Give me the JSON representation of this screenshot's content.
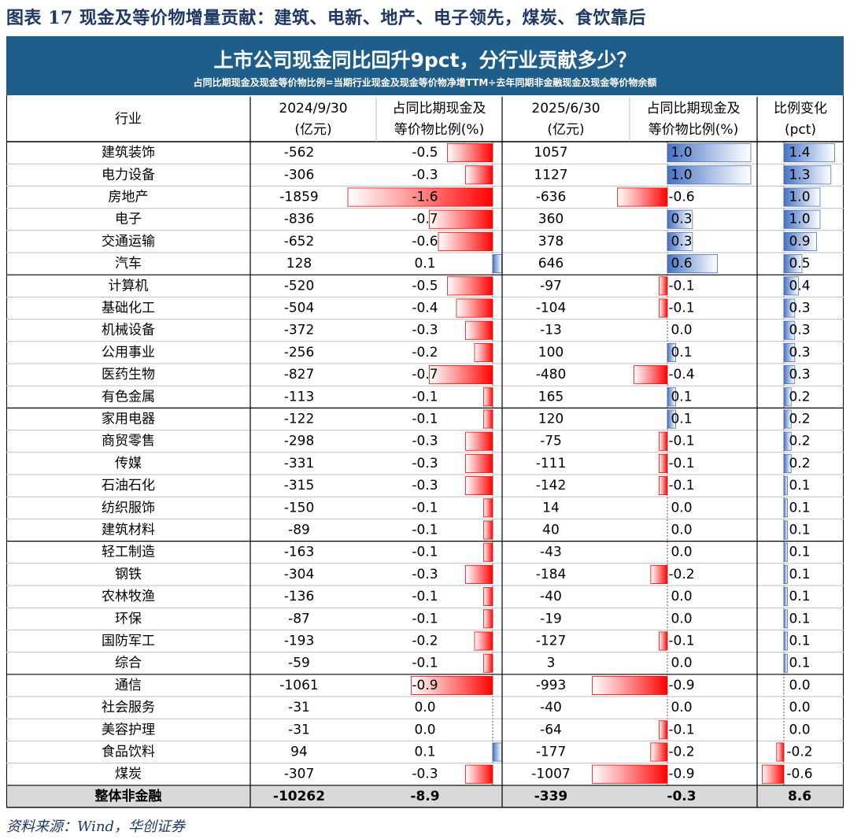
{
  "figure_title": "图表 17 现金及等价物增量贡献：建筑、电新、地产、电子领先，煤炭、食饮靠后",
  "banner": {
    "title": "上市公司现金同比回升9pct，分行业贡献多少？",
    "subtitle": "占同比期现金及现金等价物比例=当期行业现金及现金等价物净增TTM÷去年同期非金融现金及现金等价物余额"
  },
  "source": "资料来源：Wind，华创证券",
  "colors": {
    "banner": "#1f5e8a",
    "negative_bar": "#ff0000",
    "positive_bar": "#4472c4",
    "total_row": "#d9d9d9"
  },
  "chart_data": {
    "type": "table",
    "columns": [
      {
        "lines": [
          "行业"
        ]
      },
      {
        "lines": [
          "2024/9/30",
          "(亿元)"
        ]
      },
      {
        "lines": [
          "占同比期现金及",
          "等价物比例(%)"
        ]
      },
      {
        "lines": [
          "2025/6/30",
          "(亿元)"
        ]
      },
      {
        "lines": [
          "占同比期现金及",
          "等价物比例(%)"
        ]
      },
      {
        "lines": [
          "比例变化",
          "(pct)"
        ]
      }
    ],
    "rows": [
      {
        "industry": "建筑装饰",
        "v2024": "-562",
        "r2024": "-0.5",
        "v2025": "1057",
        "r2025": "1.0",
        "change": "1.4"
      },
      {
        "industry": "电力设备",
        "v2024": "-306",
        "r2024": "-0.3",
        "v2025": "1127",
        "r2025": "1.0",
        "change": "1.3"
      },
      {
        "industry": "房地产",
        "v2024": "-1859",
        "r2024": "-1.6",
        "v2025": "-636",
        "r2025": "-0.6",
        "change": "1.0"
      },
      {
        "industry": "电子",
        "v2024": "-836",
        "r2024": "-0.7",
        "v2025": "360",
        "r2025": "0.3",
        "change": "1.0"
      },
      {
        "industry": "交通运输",
        "v2024": "-652",
        "r2024": "-0.6",
        "v2025": "378",
        "r2025": "0.3",
        "change": "0.9"
      },
      {
        "industry": "汽车",
        "v2024": "128",
        "r2024": "0.1",
        "v2025": "646",
        "r2025": "0.6",
        "change": "0.5"
      },
      {
        "industry": "计算机",
        "v2024": "-520",
        "r2024": "-0.5",
        "v2025": "-97",
        "r2025": "-0.1",
        "change": "0.4"
      },
      {
        "industry": "基础化工",
        "v2024": "-504",
        "r2024": "-0.4",
        "v2025": "-104",
        "r2025": "-0.1",
        "change": "0.3"
      },
      {
        "industry": "机械设备",
        "v2024": "-372",
        "r2024": "-0.3",
        "v2025": "-13",
        "r2025": "0.0",
        "change": "0.3"
      },
      {
        "industry": "公用事业",
        "v2024": "-256",
        "r2024": "-0.2",
        "v2025": "100",
        "r2025": "0.1",
        "change": "0.3"
      },
      {
        "industry": "医药生物",
        "v2024": "-827",
        "r2024": "-0.7",
        "v2025": "-480",
        "r2025": "-0.4",
        "change": "0.3"
      },
      {
        "industry": "有色金属",
        "v2024": "-113",
        "r2024": "-0.1",
        "v2025": "165",
        "r2025": "0.1",
        "change": "0.2"
      },
      {
        "industry": "家用电器",
        "v2024": "-122",
        "r2024": "-0.1",
        "v2025": "120",
        "r2025": "0.1",
        "change": "0.2"
      },
      {
        "industry": "商贸零售",
        "v2024": "-298",
        "r2024": "-0.3",
        "v2025": "-75",
        "r2025": "-0.1",
        "change": "0.2"
      },
      {
        "industry": "传媒",
        "v2024": "-331",
        "r2024": "-0.3",
        "v2025": "-111",
        "r2025": "-0.1",
        "change": "0.2"
      },
      {
        "industry": "石油石化",
        "v2024": "-315",
        "r2024": "-0.3",
        "v2025": "-142",
        "r2025": "-0.1",
        "change": "0.1"
      },
      {
        "industry": "纺织服饰",
        "v2024": "-150",
        "r2024": "-0.1",
        "v2025": "14",
        "r2025": "0.0",
        "change": "0.1"
      },
      {
        "industry": "建筑材料",
        "v2024": "-89",
        "r2024": "-0.1",
        "v2025": "40",
        "r2025": "0.0",
        "change": "0.1"
      },
      {
        "industry": "轻工制造",
        "v2024": "-163",
        "r2024": "-0.1",
        "v2025": "-43",
        "r2025": "0.0",
        "change": "0.1"
      },
      {
        "industry": "钢铁",
        "v2024": "-304",
        "r2024": "-0.3",
        "v2025": "-184",
        "r2025": "-0.2",
        "change": "0.1"
      },
      {
        "industry": "农林牧渔",
        "v2024": "-136",
        "r2024": "-0.1",
        "v2025": "-40",
        "r2025": "0.0",
        "change": "0.1"
      },
      {
        "industry": "环保",
        "v2024": "-87",
        "r2024": "-0.1",
        "v2025": "-19",
        "r2025": "0.0",
        "change": "0.1"
      },
      {
        "industry": "国防军工",
        "v2024": "-193",
        "r2024": "-0.2",
        "v2025": "-127",
        "r2025": "-0.1",
        "change": "0.1"
      },
      {
        "industry": "综合",
        "v2024": "-59",
        "r2024": "-0.1",
        "v2025": "3",
        "r2025": "0.0",
        "change": "0.1"
      },
      {
        "industry": "通信",
        "v2024": "-1061",
        "r2024": "-0.9",
        "v2025": "-993",
        "r2025": "-0.9",
        "change": "0.0"
      },
      {
        "industry": "社会服务",
        "v2024": "-31",
        "r2024": "0.0",
        "v2025": "-40",
        "r2025": "0.0",
        "change": "0.0"
      },
      {
        "industry": "美容护理",
        "v2024": "-31",
        "r2024": "0.0",
        "v2025": "-64",
        "r2025": "-0.1",
        "change": "0.0"
      },
      {
        "industry": "食品饮料",
        "v2024": "94",
        "r2024": "0.1",
        "v2025": "-177",
        "r2025": "-0.2",
        "change": "-0.2"
      },
      {
        "industry": "煤炭",
        "v2024": "-307",
        "r2024": "-0.3",
        "v2025": "-1007",
        "r2025": "-0.9",
        "change": "-0.6"
      }
    ],
    "total": {
      "industry": "整体非金融",
      "v2024": "-10262",
      "r2024": "-8.9",
      "v2025": "-339",
      "r2025": "-0.3",
      "change": "8.6"
    }
  }
}
